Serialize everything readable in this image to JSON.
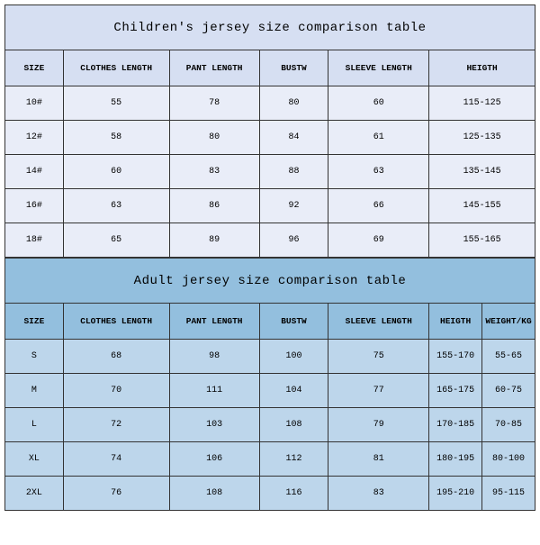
{
  "children": {
    "title": "Children's jersey size comparison table",
    "title_bg": "#d6dff2",
    "header_bg": "#d6dff2",
    "row_bg": "#e9edf8",
    "columns": [
      "SIZE",
      "CLOTHES LENGTH",
      "PANT LENGTH",
      "BUSTW",
      "SLEEVE LENGTH",
      "HEIGTH"
    ],
    "rows": [
      [
        "10#",
        "55",
        "78",
        "80",
        "60",
        "115-125"
      ],
      [
        "12#",
        "58",
        "80",
        "84",
        "61",
        "125-135"
      ],
      [
        "14#",
        "60",
        "83",
        "88",
        "63",
        "135-145"
      ],
      [
        "16#",
        "63",
        "86",
        "92",
        "66",
        "145-155"
      ],
      [
        "18#",
        "65",
        "89",
        "96",
        "69",
        "155-165"
      ]
    ]
  },
  "adult": {
    "title": "Adult jersey size comparison table",
    "title_bg": "#93bfde",
    "header_bg": "#93bfde",
    "row_bg": "#bdd6eb",
    "columns": [
      "SIZE",
      "CLOTHES LENGTH",
      "PANT LENGTH",
      "BUSTW",
      "SLEEVE LENGTH",
      "HEIGTH",
      "WEIGHT/KG"
    ],
    "rows": [
      [
        "S",
        "68",
        "98",
        "100",
        "75",
        "155-170",
        "55-65"
      ],
      [
        "M",
        "70",
        "111",
        "104",
        "77",
        "165-175",
        "60-75"
      ],
      [
        "L",
        "72",
        "103",
        "108",
        "79",
        "170-185",
        "70-85"
      ],
      [
        "XL",
        "74",
        "106",
        "112",
        "81",
        "180-195",
        "80-100"
      ],
      [
        "2XL",
        "76",
        "108",
        "116",
        "83",
        "195-210",
        "95-115"
      ]
    ]
  }
}
